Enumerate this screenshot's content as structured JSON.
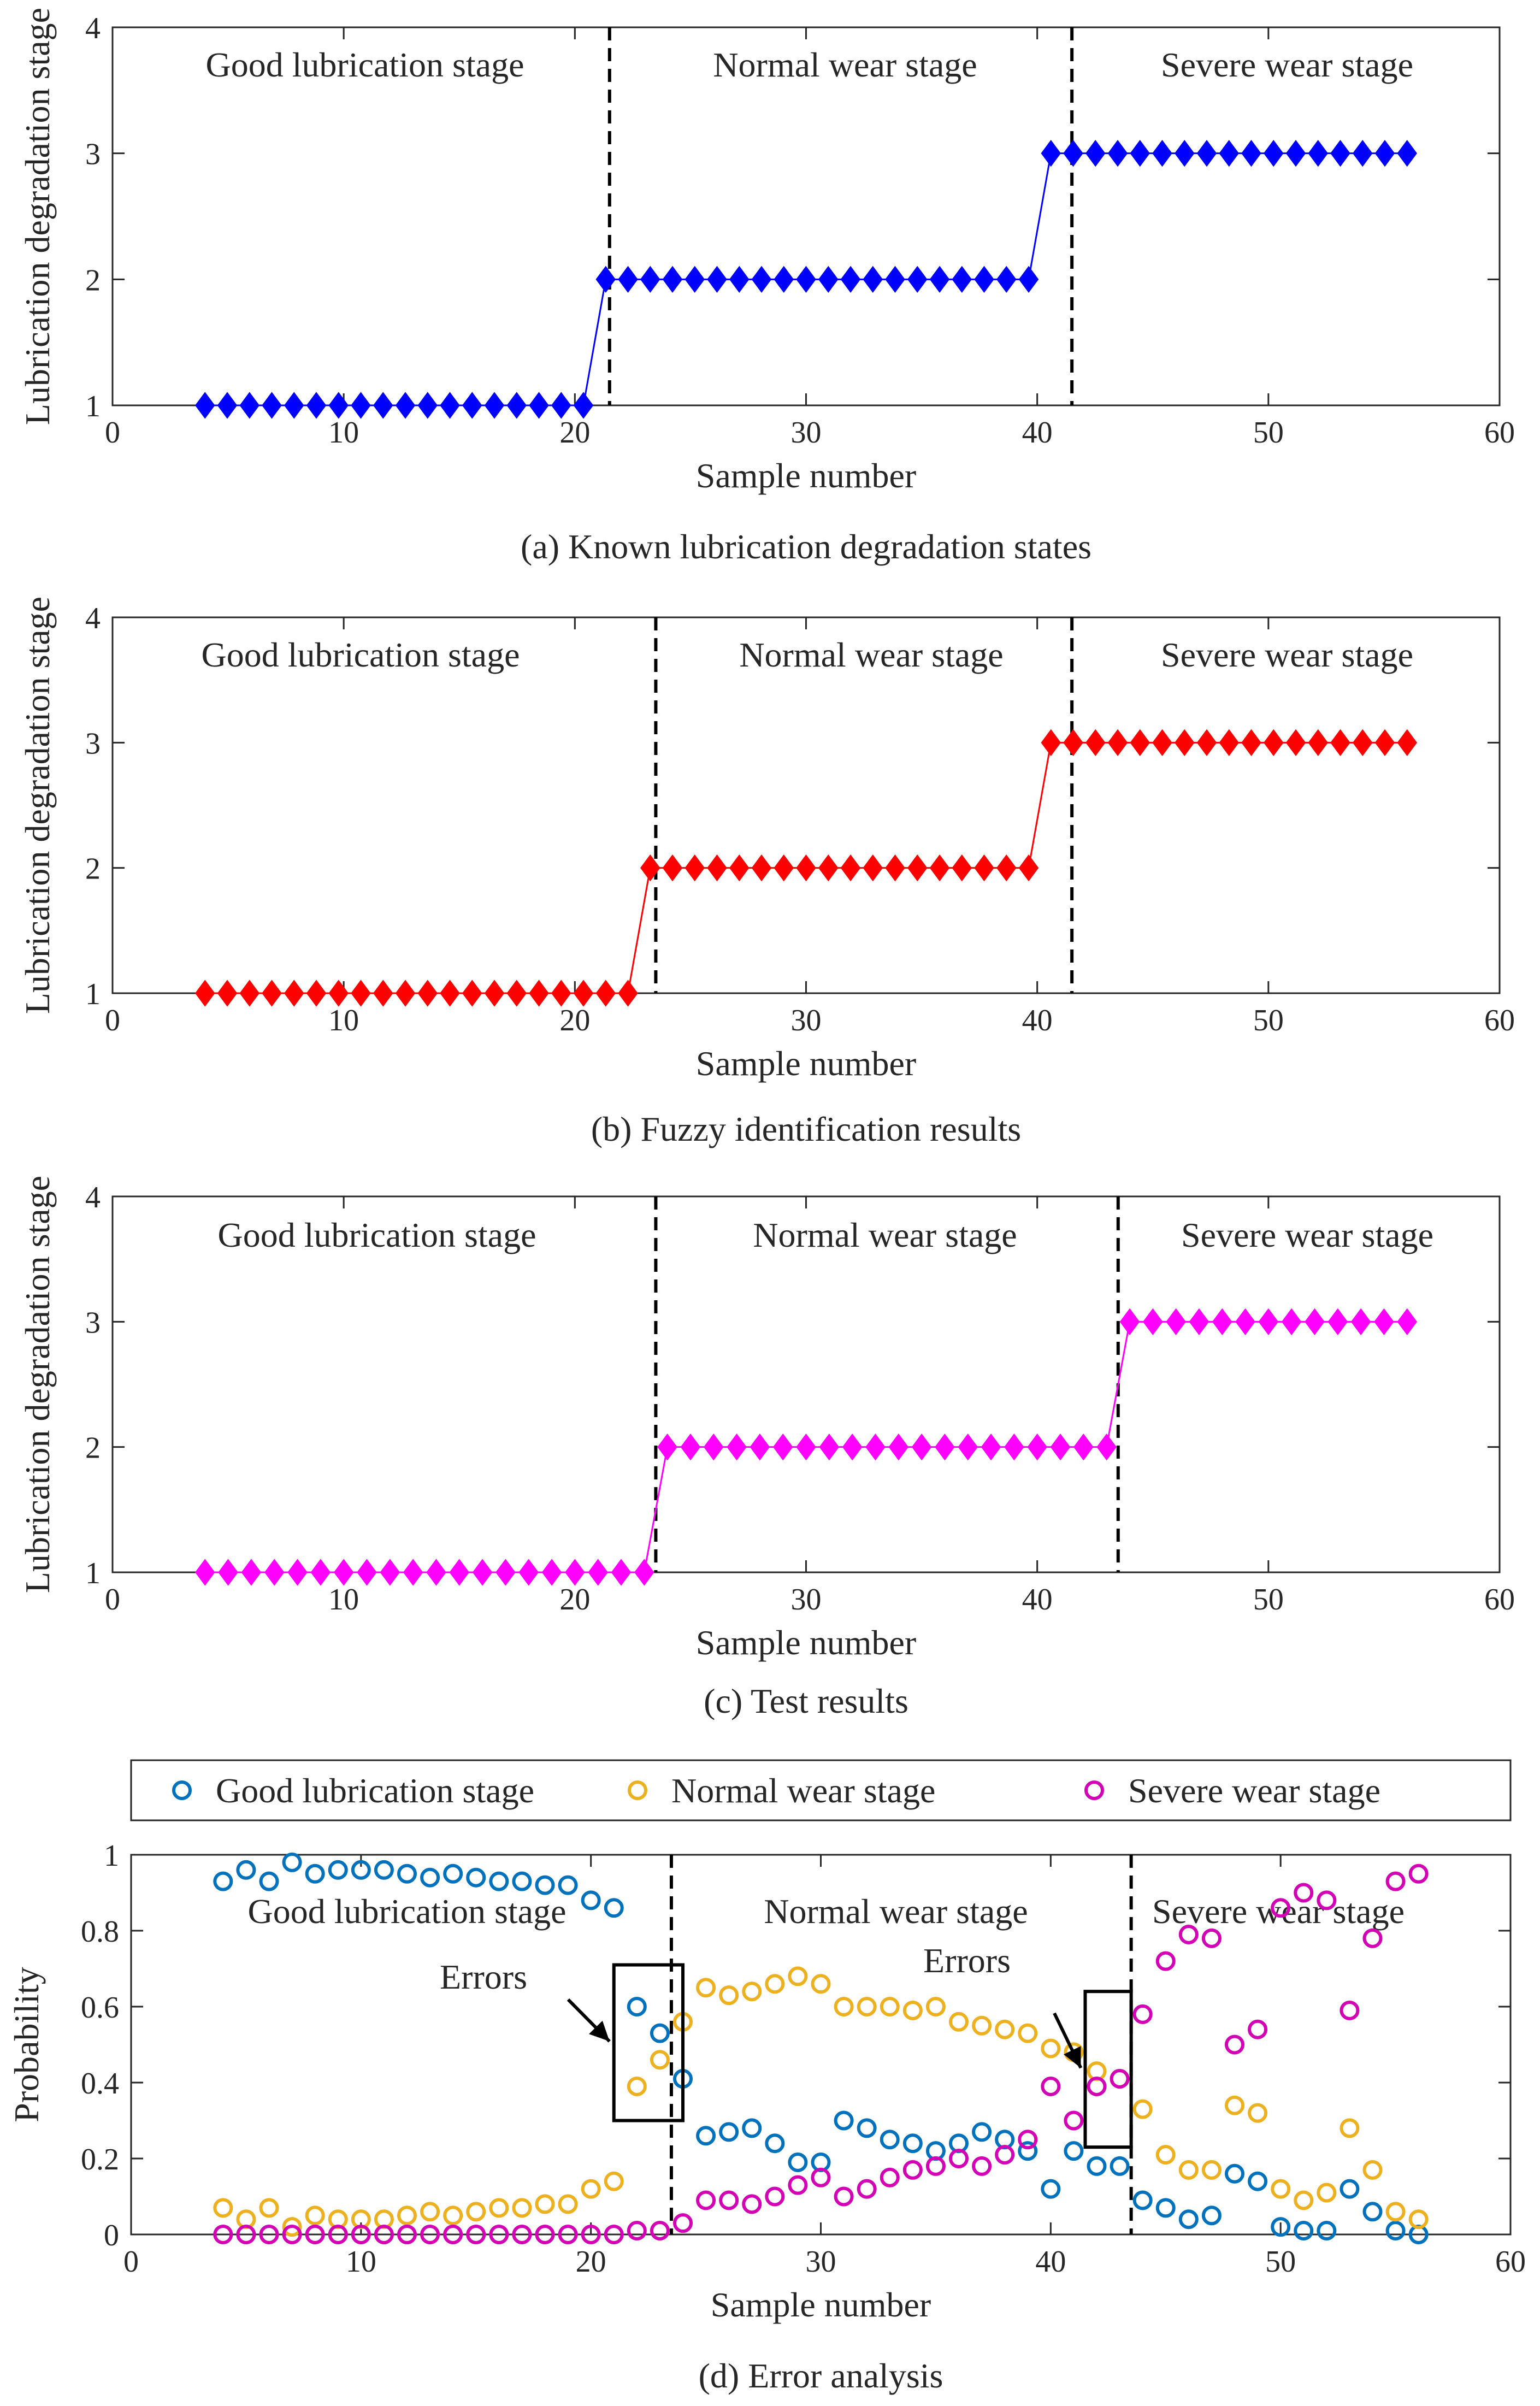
{
  "chart_data": [
    {
      "type": "line",
      "caption": "(a) Known lubrication degradation states",
      "xlabel": "Sample number",
      "ylabel": "Lubrication degradation stage",
      "xlim": [
        0,
        60
      ],
      "ylim": [
        1,
        4
      ],
      "xticks": [
        "0",
        "10",
        "20",
        "30",
        "40",
        "50",
        "60"
      ],
      "yticks": [
        "1",
        "2",
        "3",
        "4"
      ],
      "color": "#0000ff",
      "stage_labels": [
        "Good lubrication stage",
        "Normal wear stage",
        "Severe wear stage"
      ],
      "boundaries": [
        21.5,
        41.5
      ],
      "series": [
        {
          "name": "Known state",
          "x_start": 4,
          "x_end": 56,
          "values": [
            1,
            1,
            1,
            1,
            1,
            1,
            1,
            1,
            1,
            1,
            1,
            1,
            1,
            1,
            1,
            1,
            1,
            1,
            2,
            2,
            2,
            2,
            2,
            2,
            2,
            2,
            2,
            2,
            2,
            2,
            2,
            2,
            2,
            2,
            2,
            2,
            2,
            2,
            3,
            3,
            3,
            3,
            3,
            3,
            3,
            3,
            3,
            3,
            3,
            3,
            3,
            3,
            3,
            3,
            3
          ]
        }
      ]
    },
    {
      "type": "line",
      "caption": "(b) Fuzzy identification results",
      "xlabel": "Sample number",
      "ylabel": "Lubrication degradation stage",
      "xlim": [
        0,
        60
      ],
      "ylim": [
        1,
        4
      ],
      "xticks": [
        "0",
        "10",
        "20",
        "30",
        "40",
        "50",
        "60"
      ],
      "yticks": [
        "1",
        "2",
        "3",
        "4"
      ],
      "color": "#ff0000",
      "stage_labels": [
        "Good lubrication stage",
        "Normal wear stage",
        "Severe wear stage"
      ],
      "boundaries": [
        23.5,
        41.5
      ],
      "series": [
        {
          "name": "Fuzzy identification",
          "x_start": 4,
          "x_end": 56,
          "values": [
            1,
            1,
            1,
            1,
            1,
            1,
            1,
            1,
            1,
            1,
            1,
            1,
            1,
            1,
            1,
            1,
            1,
            1,
            1,
            1,
            2,
            2,
            2,
            2,
            2,
            2,
            2,
            2,
            2,
            2,
            2,
            2,
            2,
            2,
            2,
            2,
            2,
            2,
            3,
            3,
            3,
            3,
            3,
            3,
            3,
            3,
            3,
            3,
            3,
            3,
            3,
            3,
            3,
            3,
            3
          ]
        }
      ]
    },
    {
      "type": "line",
      "caption": "(c) Test results",
      "xlabel": "Sample number",
      "ylabel": "Lubrication degradation stage",
      "xlim": [
        0,
        60
      ],
      "ylim": [
        1,
        4
      ],
      "xticks": [
        "0",
        "10",
        "20",
        "30",
        "40",
        "50",
        "60"
      ],
      "yticks": [
        "1",
        "2",
        "3",
        "4"
      ],
      "color": "#ff00ff",
      "stage_labels": [
        "Good lubrication stage",
        "Normal wear stage",
        "Severe wear stage"
      ],
      "boundaries": [
        23.5,
        43.5
      ],
      "series": [
        {
          "name": "Test result",
          "x_start": 4,
          "x_end": 56,
          "values": [
            1,
            1,
            1,
            1,
            1,
            1,
            1,
            1,
            1,
            1,
            1,
            1,
            1,
            1,
            1,
            1,
            1,
            1,
            1,
            1,
            2,
            2,
            2,
            2,
            2,
            2,
            2,
            2,
            2,
            2,
            2,
            2,
            2,
            2,
            2,
            2,
            2,
            2,
            2,
            2,
            3,
            3,
            3,
            3,
            3,
            3,
            3,
            3,
            3,
            3,
            3,
            3,
            3
          ]
        }
      ]
    },
    {
      "type": "scatter",
      "caption": "(d) Error analysis",
      "xlabel": "Sample number",
      "ylabel": "Probability",
      "xlim": [
        0,
        60
      ],
      "ylim": [
        0,
        1
      ],
      "xticks": [
        "0",
        "10",
        "20",
        "30",
        "40",
        "50",
        "60"
      ],
      "yticks": [
        "0",
        "0.2",
        "0.4",
        "0.6",
        "0.8",
        "1"
      ],
      "stage_labels": [
        "Good lubrication stage",
        "Normal wear stage",
        "Severe wear stage"
      ],
      "boundaries": [
        23.5,
        43.5
      ],
      "annotations": [
        {
          "text": "Errors",
          "box_x": [
            21,
            24
          ],
          "box_y": [
            0.3,
            0.71
          ]
        },
        {
          "text": "Errors",
          "box_x": [
            41.5,
            43.5
          ],
          "box_y": [
            0.23,
            0.64
          ]
        }
      ],
      "x": [
        4,
        5,
        6,
        7,
        8,
        9,
        10,
        11,
        12,
        13,
        14,
        15,
        16,
        17,
        18,
        19,
        20,
        21,
        22,
        23,
        24,
        25,
        26,
        27,
        28,
        29,
        30,
        31,
        32,
        33,
        34,
        35,
        36,
        37,
        38,
        39,
        40,
        41,
        42,
        43,
        44,
        45,
        46,
        47,
        48,
        49,
        50,
        51,
        52,
        53,
        54,
        55,
        56
      ],
      "series": [
        {
          "name": "Good lubrication stage",
          "color": "#0072bd",
          "values": [
            0.93,
            0.96,
            0.93,
            0.98,
            0.95,
            0.96,
            0.96,
            0.96,
            0.95,
            0.94,
            0.95,
            0.94,
            0.93,
            0.93,
            0.92,
            0.92,
            0.88,
            0.86,
            0.6,
            0.53,
            0.41,
            0.26,
            0.27,
            0.28,
            0.24,
            0.19,
            0.19,
            0.3,
            0.28,
            0.25,
            0.24,
            0.22,
            0.24,
            0.27,
            0.25,
            0.22,
            0.12,
            0.22,
            0.18,
            0.18,
            0.09,
            0.07,
            0.04,
            0.05,
            0.16,
            0.14,
            0.02,
            0.01,
            0.01,
            0.12,
            0.06,
            0.01,
            0.0
          ]
        },
        {
          "name": "Normal wear stage",
          "color": "#edb120",
          "values": [
            0.07,
            0.04,
            0.07,
            0.02,
            0.05,
            0.04,
            0.04,
            0.04,
            0.05,
            0.06,
            0.05,
            0.06,
            0.07,
            0.07,
            0.08,
            0.08,
            0.12,
            0.14,
            0.39,
            0.46,
            0.56,
            0.65,
            0.63,
            0.64,
            0.66,
            0.68,
            0.66,
            0.6,
            0.6,
            0.6,
            0.59,
            0.6,
            0.56,
            0.55,
            0.54,
            0.53,
            0.49,
            0.48,
            0.43,
            0.41,
            0.33,
            0.21,
            0.17,
            0.17,
            0.34,
            0.32,
            0.12,
            0.09,
            0.11,
            0.28,
            0.17,
            0.06,
            0.04
          ]
        },
        {
          "name": "Severe wear stage",
          "color": "#d400b5",
          "values": [
            0.0,
            0.0,
            0.0,
            0.0,
            0.0,
            0.0,
            0.0,
            0.0,
            0.0,
            0.0,
            0.0,
            0.0,
            0.0,
            0.0,
            0.0,
            0.0,
            0.0,
            0.0,
            0.01,
            0.01,
            0.03,
            0.09,
            0.09,
            0.08,
            0.1,
            0.13,
            0.15,
            0.1,
            0.12,
            0.15,
            0.17,
            0.18,
            0.2,
            0.18,
            0.21,
            0.25,
            0.39,
            0.3,
            0.39,
            0.41,
            0.58,
            0.72,
            0.79,
            0.78,
            0.5,
            0.54,
            0.86,
            0.9,
            0.88,
            0.59,
            0.78,
            0.93,
            0.95
          ]
        }
      ]
    }
  ]
}
